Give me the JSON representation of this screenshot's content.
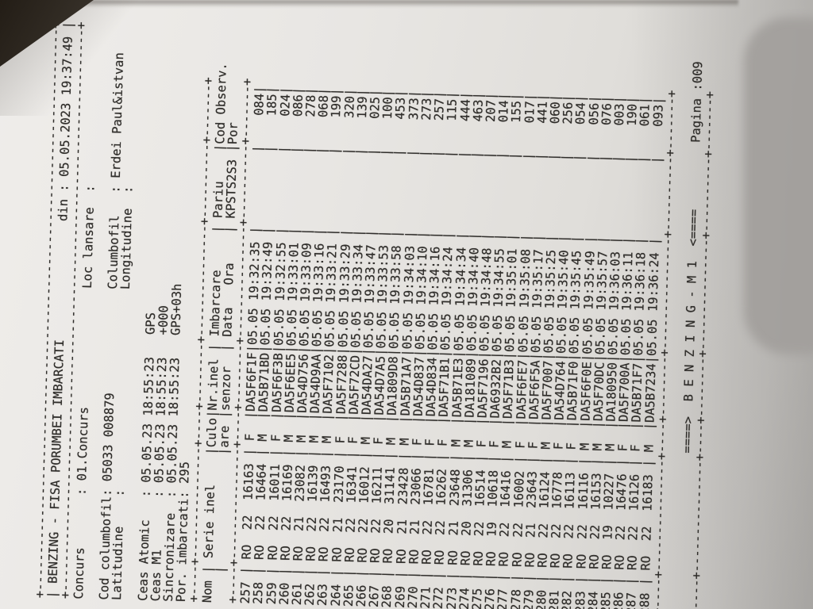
{
  "photo": {
    "surface_color": "#2a241d",
    "paper_color": "#e8e6e3",
    "ink_color": "#2f2d2a",
    "shadow_color": "#a3a09d"
  },
  "document": {
    "title": "BENZING - FISA PORUMBEI IMBARCATI",
    "printed_label": "din :",
    "printed_at": "05.05.2023 19:37:49",
    "info": {
      "concurs_label": "Concurs",
      "concurs": "01.Concurs",
      "loc_lansare_label": "Loc lansare",
      "loc_lansare": "",
      "cod_columbofil_label": "Cod columbofil",
      "cod_columbofil": "05033 008879",
      "columbofil_label": "Columbofil",
      "columbofil": "Erdei Paul&istvan",
      "latitudine_label": "Latitudine",
      "latitudine": "",
      "longitudine_label": "Longitudine",
      "longitudine": "",
      "ceas_atomic_label": "Ceas Atomic",
      "ceas_atomic": "05.05.23 18:55:23",
      "ceas_atomic_src": "GPS",
      "ceas_m1_label": "Ceas M1",
      "ceas_m1": "05.05.23 18:55:23",
      "ceas_m1_drift": "+000",
      "sincronizare_label": "Sincronizare",
      "sincronizare": "05.05.23 18:55:23",
      "sincronizare_src": "GPS+03h",
      "por_imbarcati_label": "Por. imbarcati",
      "por_imbarcati": "295"
    },
    "table": {
      "columns": [
        {
          "label": "Nom",
          "sub": ""
        },
        {
          "label": "Serie inel",
          "sub": ""
        },
        {
          "label": "Culo",
          "sub": "are"
        },
        {
          "label": "Nr.inel",
          "sub": "senzor"
        },
        {
          "label": "Imbarcare",
          "sub": "Data   Ora"
        },
        {
          "label": "Pariu",
          "sub": "KPSTS2S3"
        },
        {
          "label": "Cod Observ.",
          "sub": "Por"
        }
      ],
      "rows": [
        {
          "nom": "257",
          "tara": "RO",
          "an": "22",
          "inel": "16163",
          "culoare": "F",
          "senzor": "DA5F6F1F",
          "data": "05.05",
          "ora": "19:32:35",
          "pariu": "",
          "por": "084"
        },
        {
          "nom": "258",
          "tara": "RO",
          "an": "22",
          "inel": "16464",
          "culoare": "M",
          "senzor": "DA5B71BD",
          "data": "05.05",
          "ora": "19:32:49",
          "pariu": "",
          "por": "185"
        },
        {
          "nom": "259",
          "tara": "RO",
          "an": "22",
          "inel": "16011",
          "culoare": "F",
          "senzor": "DA5F6F3B",
          "data": "05.05",
          "ora": "19:32:55",
          "pariu": "",
          "por": "024"
        },
        {
          "nom": "260",
          "tara": "RO",
          "an": "22",
          "inel": "16169",
          "culoare": "M",
          "senzor": "DA5F6EE5",
          "data": "05.05",
          "ora": "19:33:01",
          "pariu": "",
          "por": "086"
        },
        {
          "nom": "261",
          "tara": "RO",
          "an": "21",
          "inel": "23082",
          "culoare": "M",
          "senzor": "DA54D756",
          "data": "05.05",
          "ora": "19:33:09",
          "pariu": "",
          "por": "278"
        },
        {
          "nom": "262",
          "tara": "RO",
          "an": "22",
          "inel": "16139",
          "culoare": "M",
          "senzor": "DA54D9AA",
          "data": "05.05",
          "ora": "19:33:16",
          "pariu": "",
          "por": "068"
        },
        {
          "nom": "263",
          "tara": "RO",
          "an": "22",
          "inel": "16493",
          "culoare": "M",
          "senzor": "DA5F7102",
          "data": "05.05",
          "ora": "19:33:21",
          "pariu": "",
          "por": "199"
        },
        {
          "nom": "264",
          "tara": "RO",
          "an": "21",
          "inel": "23170",
          "culoare": "F",
          "senzor": "DA5F7288",
          "data": "05.05",
          "ora": "19:33:29",
          "pariu": "",
          "por": "320"
        },
        {
          "nom": "265",
          "tara": "RO",
          "an": "22",
          "inel": "16341",
          "culoare": "F",
          "senzor": "DA5F72CD",
          "data": "05.05",
          "ora": "19:33:34",
          "pariu": "",
          "por": "139"
        },
        {
          "nom": "266",
          "tara": "RO",
          "an": "22",
          "inel": "16012",
          "culoare": "M",
          "senzor": "DA54DA27",
          "data": "05.05",
          "ora": "19:33:47",
          "pariu": "",
          "por": "025"
        },
        {
          "nom": "267",
          "tara": "RO",
          "an": "22",
          "inel": "16211",
          "culoare": "F",
          "senzor": "DA54D7A5",
          "data": "05.05",
          "ora": "19:33:53",
          "pariu": "",
          "por": "100"
        },
        {
          "nom": "268",
          "tara": "RO",
          "an": "20",
          "inel": "31141",
          "culoare": "M",
          "senzor": "DA1809D8",
          "data": "05.05",
          "ora": "19:33:58",
          "pariu": "",
          "por": "453"
        },
        {
          "nom": "269",
          "tara": "RO",
          "an": "21",
          "inel": "23428",
          "culoare": "M",
          "senzor": "DA5B71A7",
          "data": "05.05",
          "ora": "19:34:03",
          "pariu": "",
          "por": "373"
        },
        {
          "nom": "270",
          "tara": "RO",
          "an": "21",
          "inel": "23066",
          "culoare": "F",
          "senzor": "DA54D837",
          "data": "05.05",
          "ora": "19:34:10",
          "pariu": "",
          "por": "273"
        },
        {
          "nom": "271",
          "tara": "RO",
          "an": "22",
          "inel": "16781",
          "culoare": "F",
          "senzor": "DA54D834",
          "data": "05.05",
          "ora": "19:34:16",
          "pariu": "",
          "por": "257"
        },
        {
          "nom": "272",
          "tara": "RO",
          "an": "22",
          "inel": "16262",
          "culoare": "F",
          "senzor": "DA5F71B1",
          "data": "05.05",
          "ora": "19:34:24",
          "pariu": "",
          "por": "115"
        },
        {
          "nom": "273",
          "tara": "RO",
          "an": "21",
          "inel": "23648",
          "culoare": "M",
          "senzor": "DA5B71E3",
          "data": "05.05",
          "ora": "19:34:34",
          "pariu": "",
          "por": "444"
        },
        {
          "nom": "274",
          "tara": "RO",
          "an": "20",
          "inel": "31306",
          "culoare": "M",
          "senzor": "DA181089",
          "data": "05.05",
          "ora": "19:34:40",
          "pariu": "",
          "por": "463"
        },
        {
          "nom": "275",
          "tara": "RO",
          "an": "22",
          "inel": "16514",
          "culoare": "F",
          "senzor": "DA5F7196",
          "data": "05.05",
          "ora": "19:34:48",
          "pariu": "",
          "por": "207"
        },
        {
          "nom": "276",
          "tara": "RO",
          "an": "19",
          "inel": "10618",
          "culoare": "F",
          "senzor": "DA6932B2",
          "data": "05.05",
          "ora": "19:34:55",
          "pariu": "",
          "por": "014"
        },
        {
          "nom": "277",
          "tara": "RO",
          "an": "22",
          "inel": "16416",
          "culoare": "M",
          "senzor": "DA5F71B3",
          "data": "05.05",
          "ora": "19:35:01",
          "pariu": "",
          "por": "155"
        },
        {
          "nom": "278",
          "tara": "RO",
          "an": "22",
          "inel": "16002",
          "culoare": "F",
          "senzor": "DA5F6FE7",
          "data": "05.05",
          "ora": "19:35:08",
          "pariu": "",
          "por": "017"
        },
        {
          "nom": "279",
          "tara": "RO",
          "an": "21",
          "inel": "23643",
          "culoare": "F",
          "senzor": "DA5F6F5A",
          "data": "05.05",
          "ora": "19:35:17",
          "pariu": "",
          "por": "441"
        },
        {
          "nom": "280",
          "tara": "RO",
          "an": "22",
          "inel": "16124",
          "culoare": "M",
          "senzor": "DA5F7007",
          "data": "05.05",
          "ora": "19:35:25",
          "pariu": "",
          "por": "060"
        },
        {
          "nom": "281",
          "tara": "RO",
          "an": "22",
          "inel": "16778",
          "culoare": "F",
          "senzor": "DA54D764",
          "data": "05.05",
          "ora": "19:35:40",
          "pariu": "",
          "por": "256"
        },
        {
          "nom": "282",
          "tara": "RO",
          "an": "22",
          "inel": "16113",
          "culoare": "F",
          "senzor": "DA5B71F0",
          "data": "05.05",
          "ora": "19:35:45",
          "pariu": "",
          "por": "054"
        },
        {
          "nom": "283",
          "tara": "RO",
          "an": "22",
          "inel": "16116",
          "culoare": "M",
          "senzor": "DA5F6F0E",
          "data": "05.05",
          "ora": "19:35:49",
          "pariu": "",
          "por": "056"
        },
        {
          "nom": "284",
          "tara": "RO",
          "an": "22",
          "inel": "16153",
          "culoare": "M",
          "senzor": "DA5F70DC",
          "data": "05.05",
          "ora": "19:35:57",
          "pariu": "",
          "por": "076"
        },
        {
          "nom": "285",
          "tara": "RO",
          "an": "19",
          "inel": "10227",
          "culoare": "M",
          "senzor": "DA180950",
          "data": "05.05",
          "ora": "19:36:03",
          "pariu": "",
          "por": "003"
        },
        {
          "nom": "286",
          "tara": "RO",
          "an": "22",
          "inel": "16476",
          "culoare": "F",
          "senzor": "DA5F700A",
          "data": "05.05",
          "ora": "19:36:11",
          "pariu": "",
          "por": "190"
        },
        {
          "nom": "287",
          "tara": "RO",
          "an": "22",
          "inel": "16126",
          "culoare": "F",
          "senzor": "DA5B71F7",
          "data": "05.05",
          "ora": "19:36:18",
          "pariu": "",
          "por": "061"
        },
        {
          "nom": "288",
          "tara": "RO",
          "an": "22",
          "inel": "16183",
          "culoare": "M",
          "senzor": "DA5B7234",
          "data": "05.05",
          "ora": "19:36:24",
          "pariu": "",
          "por": "093"
        }
      ]
    },
    "footer": {
      "banner": "====>  B E N Z I N G - M 1  <====",
      "pagina_label": "Pagina :",
      "pagina": "009"
    }
  }
}
